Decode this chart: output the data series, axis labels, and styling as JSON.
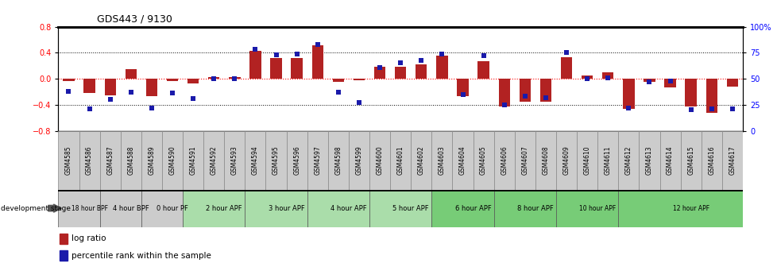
{
  "title": "GDS443 / 9130",
  "samples": [
    "GSM4585",
    "GSM4586",
    "GSM4587",
    "GSM4588",
    "GSM4589",
    "GSM4590",
    "GSM4591",
    "GSM4592",
    "GSM4593",
    "GSM4594",
    "GSM4595",
    "GSM4596",
    "GSM4597",
    "GSM4598",
    "GSM4599",
    "GSM4600",
    "GSM4601",
    "GSM4602",
    "GSM4603",
    "GSM4604",
    "GSM4605",
    "GSM4606",
    "GSM4607",
    "GSM4608",
    "GSM4609",
    "GSM4610",
    "GSM4611",
    "GSM4612",
    "GSM4613",
    "GSM4614",
    "GSM4615",
    "GSM4616",
    "GSM4617"
  ],
  "log_ratio": [
    -0.04,
    -0.22,
    -0.25,
    0.15,
    -0.27,
    -0.04,
    -0.07,
    0.02,
    0.03,
    0.43,
    0.32,
    0.32,
    0.52,
    -0.05,
    -0.02,
    0.18,
    0.18,
    0.22,
    0.36,
    -0.27,
    0.27,
    -0.42,
    -0.35,
    -0.35,
    0.33,
    0.05,
    0.1,
    -0.46,
    -0.05,
    -0.13,
    -0.42,
    -0.52,
    -0.12
  ],
  "percentile": [
    38,
    21,
    30,
    37,
    22,
    36,
    31,
    50,
    50,
    78,
    73,
    74,
    83,
    37,
    27,
    61,
    65,
    68,
    74,
    35,
    72,
    25,
    33,
    32,
    75,
    50,
    51,
    22,
    47,
    48,
    20,
    21,
    21
  ],
  "stages": [
    {
      "label": "18 hour BPF",
      "start": 0,
      "end": 2,
      "color": "#cccccc"
    },
    {
      "label": "4 hour BPF",
      "start": 2,
      "end": 4,
      "color": "#cccccc"
    },
    {
      "label": "0 hour PF",
      "start": 4,
      "end": 6,
      "color": "#cccccc"
    },
    {
      "label": "2 hour APF",
      "start": 6,
      "end": 9,
      "color": "#aaddaa"
    },
    {
      "label": "3 hour APF",
      "start": 9,
      "end": 12,
      "color": "#aaddaa"
    },
    {
      "label": "4 hour APF",
      "start": 12,
      "end": 15,
      "color": "#aaddaa"
    },
    {
      "label": "5 hour APF",
      "start": 15,
      "end": 18,
      "color": "#aaddaa"
    },
    {
      "label": "6 hour APF",
      "start": 18,
      "end": 21,
      "color": "#77cc77"
    },
    {
      "label": "8 hour APF",
      "start": 21,
      "end": 24,
      "color": "#77cc77"
    },
    {
      "label": "10 hour APF",
      "start": 24,
      "end": 27,
      "color": "#77cc77"
    },
    {
      "label": "12 hour APF",
      "start": 27,
      "end": 33,
      "color": "#77cc77"
    }
  ],
  "ylim": [
    -0.8,
    0.8
  ],
  "yticks_left": [
    -0.8,
    -0.4,
    0.0,
    0.4,
    0.8
  ],
  "yticks_right": [
    0,
    25,
    50,
    75,
    100
  ],
  "bar_color": "#b22222",
  "dot_color": "#1a1aaa",
  "dot_size": 18,
  "bar_width": 0.55,
  "legend_ratio_label": "log ratio",
  "legend_percentile_label": "percentile rank within the sample",
  "xlabel_area_bg": "#cccccc",
  "stage_area_bg": "#77cc77"
}
